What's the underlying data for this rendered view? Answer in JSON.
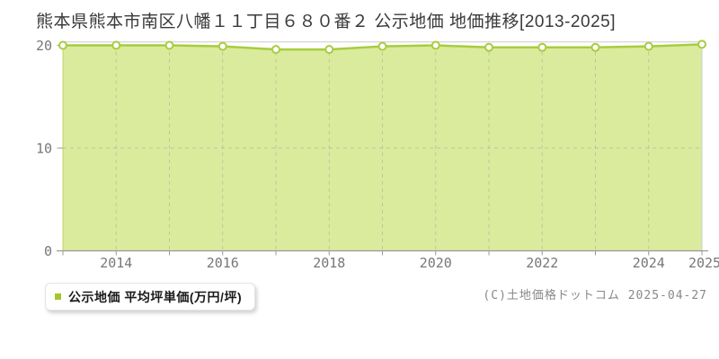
{
  "title": "熊本県熊本市南区八幡１１丁目６８０番２ 公示地価 地価推移[2013-2025]",
  "legend": {
    "label": "公示地価 平均坪単価(万円/坪)",
    "marker_color": "#a4c62a"
  },
  "copyright": "(C)土地価格ドットコム 2025-04-27",
  "chart_data": {
    "type": "area",
    "title": "熊本県熊本市南区八幡１１丁目６８０番２ 公示地価 地価推移[2013-2025]",
    "x": [
      2013,
      2014,
      2015,
      2016,
      2017,
      2018,
      2019,
      2020,
      2021,
      2022,
      2023,
      2024,
      2025
    ],
    "series": [
      {
        "name": "公示地価 平均坪単価(万円/坪)",
        "values": [
          20.0,
          20.0,
          20.0,
          19.9,
          19.6,
          19.6,
          19.9,
          20.0,
          19.8,
          19.8,
          19.8,
          19.9,
          20.1
        ]
      }
    ],
    "xlabel": "",
    "ylabel": "平均坪単価(万円/坪)",
    "ylim": [
      0,
      20.3
    ],
    "yticks": [
      0,
      10,
      20
    ],
    "xtick_labeled_years": [
      2014,
      2016,
      2018,
      2020,
      2022,
      2024,
      2025
    ],
    "grid": {
      "vertical": "dashed line at every year",
      "horizontal": "dashed line at y=10"
    },
    "legend_position": "bottom-left",
    "marker": "open-circle",
    "colors": {
      "fill": "#dbeb9d",
      "line": "#a8cc3f",
      "marker_fill": "#ffffff",
      "axis": "#999999",
      "tick_label": "#777777",
      "frame": "#cccccc",
      "gridline": "#999999"
    }
  }
}
